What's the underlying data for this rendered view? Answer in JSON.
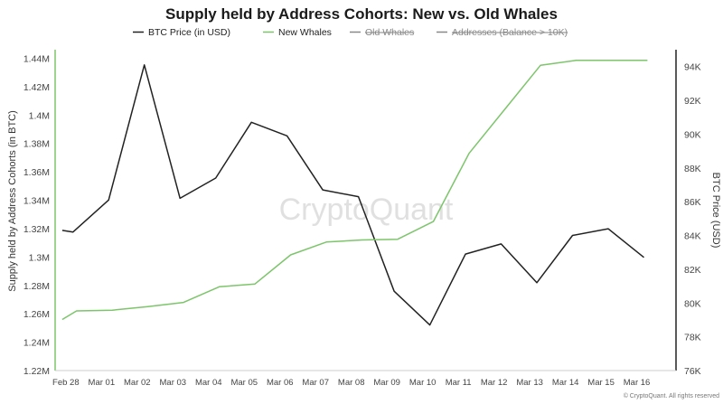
{
  "chart_data": {
    "type": "line",
    "title": "Supply held by Address Cohorts: New vs. Old Whales",
    "ylabel_left": "Supply held by Address Cohorts (in BTC)",
    "ylabel_right": "BTC Price (USD)",
    "y_left_ticks": [
      "1.22M",
      "1.24M",
      "1.26M",
      "1.28M",
      "1.3M",
      "1.32M",
      "1.34M",
      "1.36M",
      "1.38M",
      "1.4M",
      "1.42M",
      "1.44M"
    ],
    "y_left_lim": [
      1220000,
      1446000
    ],
    "y_right_ticks": [
      "76K",
      "78K",
      "80K",
      "82K",
      "84K",
      "86K",
      "88K",
      "90K",
      "92K",
      "94K"
    ],
    "y_right_lim": [
      76000,
      95000
    ],
    "x_ticks": [
      "Feb 28",
      "Mar 01",
      "Mar 02",
      "Mar 03",
      "Mar 04",
      "Mar 05",
      "Mar 06",
      "Mar 07",
      "Mar 08",
      "Mar 09",
      "Mar 10",
      "Mar 11",
      "Mar 12",
      "Mar 13",
      "Mar 14",
      "Mar 15",
      "Mar 16"
    ],
    "x_lim": [
      -0.3,
      17.1
    ],
    "legend": [
      {
        "name": "BTC Price (in USD)",
        "color": "#222222",
        "visible": true
      },
      {
        "name": "New Whales",
        "color": "#7cc56b",
        "visible": true
      },
      {
        "name": "Old Whales",
        "color": "#888888",
        "visible": false
      },
      {
        "name": "Addresses (Balance > 10K)",
        "color": "#888888",
        "visible": false
      }
    ],
    "series": [
      {
        "name": "BTC Price (in USD)",
        "axis": "right",
        "color": "#222222",
        "x": [
          -0.1,
          0.2,
          1.2,
          2.2,
          3.2,
          4.2,
          5.2,
          6.2,
          7.2,
          8.2,
          9.2,
          10.2,
          11.2,
          12.2,
          13.2,
          14.2,
          15.2,
          16.2
        ],
        "y": [
          84300,
          84200,
          86100,
          94100,
          86200,
          87400,
          90700,
          89900,
          86700,
          86300,
          80700,
          78700,
          82900,
          83500,
          81200,
          84000,
          84400,
          82700
        ]
      },
      {
        "name": "New Whales",
        "axis": "left",
        "color": "#7cc56b",
        "x": [
          -0.1,
          0.3,
          1.3,
          2.3,
          3.3,
          4.3,
          5.3,
          6.3,
          7.3,
          8.3,
          9.3,
          10.3,
          11.3,
          12.3,
          13.3,
          14.3,
          15.3,
          16.3
        ],
        "y": [
          1256000,
          1262000,
          1262500,
          1265000,
          1268000,
          1279000,
          1281000,
          1301500,
          1310500,
          1312000,
          1312500,
          1325000,
          1373000,
          1404000,
          1435000,
          1438500,
          1438500,
          1438500
        ]
      }
    ],
    "grid": false,
    "legend_position": "top-center",
    "watermark": "CryptoQuant",
    "copyright": "© CryptoQuant. All rights reserved"
  }
}
